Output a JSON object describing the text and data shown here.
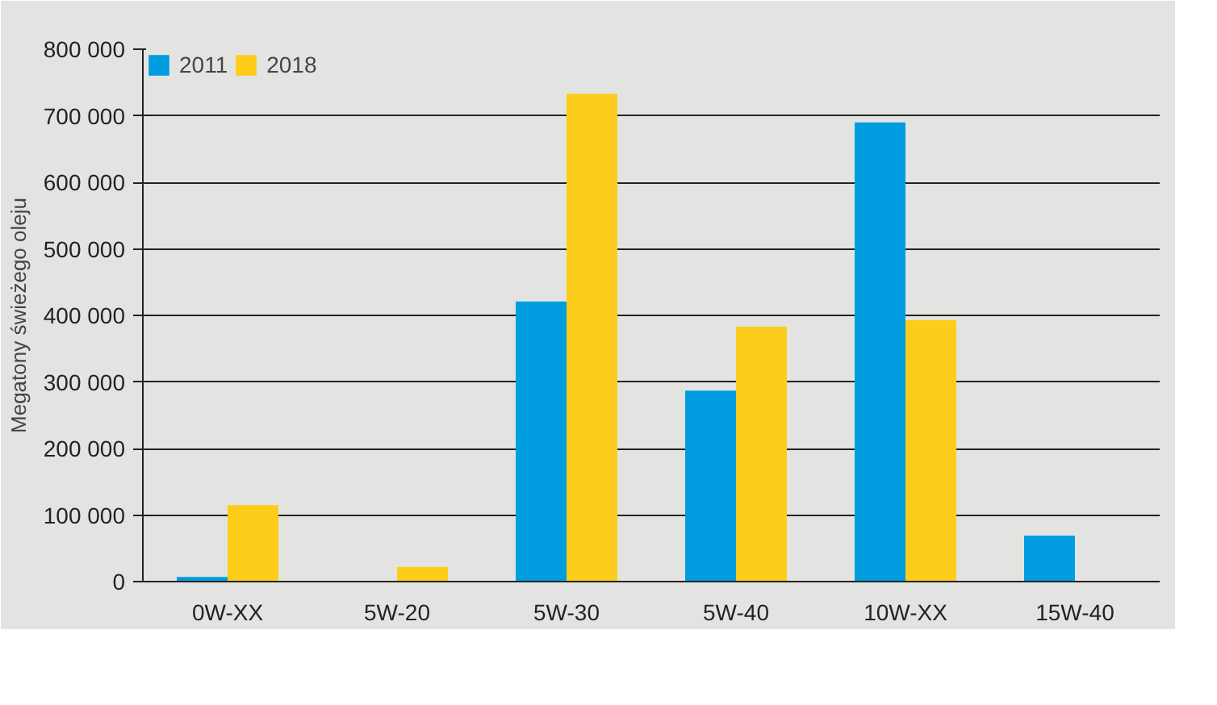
{
  "chart_data": {
    "type": "bar",
    "ylabel": "Megatony świeżego oleju",
    "categories": [
      "0W-XX",
      "5W-20",
      "5W-30",
      "5W-40",
      "10W-XX",
      "15W-40"
    ],
    "series": [
      {
        "name": "2011",
        "color": "#009ee0",
        "values": [
          7000,
          null,
          421000,
          287000,
          690000,
          69000
        ]
      },
      {
        "name": "2018",
        "color": "#fecc1a",
        "values": [
          115000,
          22000,
          733000,
          383000,
          393000,
          null
        ]
      }
    ],
    "ylim": [
      0,
      800000
    ],
    "yticks": [
      {
        "value": 0,
        "label": "0"
      },
      {
        "value": 100000,
        "label": "100 000"
      },
      {
        "value": 200000,
        "label": "200 000"
      },
      {
        "value": 300000,
        "label": "300 000"
      },
      {
        "value": 400000,
        "label": "400 000"
      },
      {
        "value": 500000,
        "label": "500 000"
      },
      {
        "value": 600000,
        "label": "600 000"
      },
      {
        "value": 700000,
        "label": "700 000"
      },
      {
        "value": 800000,
        "label": "800 000"
      }
    ],
    "grid": "y",
    "legend": "top left"
  }
}
